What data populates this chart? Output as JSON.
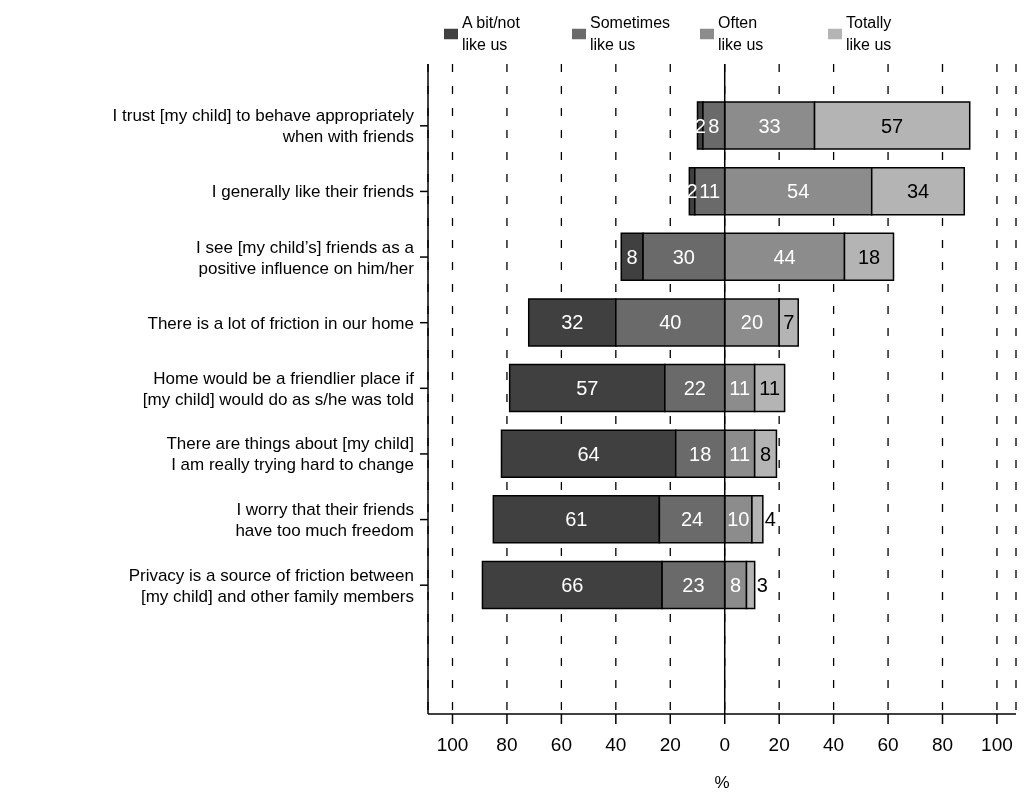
{
  "chart_data": {
    "type": "bar",
    "orientation": "horizontal",
    "xlabel": "%",
    "categories": [
      "I trust [my child] to behave appropriately\nwhen with friends",
      "I generally like their friends",
      "I see [my child’s] friends as a\npositive influence on him/her",
      "There is a lot of friction in our home",
      "Home would be a friendlier place if\n[my child] would do as s/he was told",
      "There are things about [my child]\nI am really trying hard to change",
      "I worry that their friends\nhave too much freedom",
      "Privacy is a source of friction between\n[my child] and other family members"
    ],
    "series": [
      {
        "name": "A bit/not\nlike us",
        "color": "#404040",
        "values": [
          2,
          2,
          8,
          32,
          57,
          64,
          61,
          66
        ],
        "base": [
          -10,
          -13,
          -38,
          -72,
          -79,
          -82,
          -85,
          -89
        ]
      },
      {
        "name": "Sometimes\nlike us",
        "color": "#6a6a6a",
        "values": [
          8,
          11,
          30,
          40,
          22,
          18,
          24,
          23
        ],
        "base": [
          -8,
          -11,
          -30,
          -40,
          -22,
          -18,
          -24,
          -23
        ]
      },
      {
        "name": "Often\nlike us",
        "color": "#8c8c8c",
        "values": [
          33,
          54,
          44,
          20,
          11,
          11,
          10,
          8
        ],
        "base": [
          0,
          0,
          0,
          0,
          0,
          0,
          0,
          0
        ]
      },
      {
        "name": "Totally\nlike us",
        "color": "#b4b4b4",
        "values": [
          57,
          34,
          18,
          7,
          11,
          8,
          4,
          3
        ],
        "base": [
          33,
          54,
          44,
          20,
          11,
          11,
          10,
          8
        ]
      }
    ],
    "xlim": [
      -109,
      107
    ],
    "xticks": [
      {
        "value": -100,
        "label": "100"
      },
      {
        "value": -80,
        "label": "80"
      },
      {
        "value": -60,
        "label": "60"
      },
      {
        "value": -40,
        "label": "40"
      },
      {
        "value": -20,
        "label": "20"
      },
      0,
      20,
      40,
      60,
      80,
      100
    ],
    "ref_lines": [
      {
        "axis": "x",
        "value": 0
      }
    ],
    "grid": "x",
    "line_style": "dashed",
    "legend": "top",
    "data_labels": true
  }
}
